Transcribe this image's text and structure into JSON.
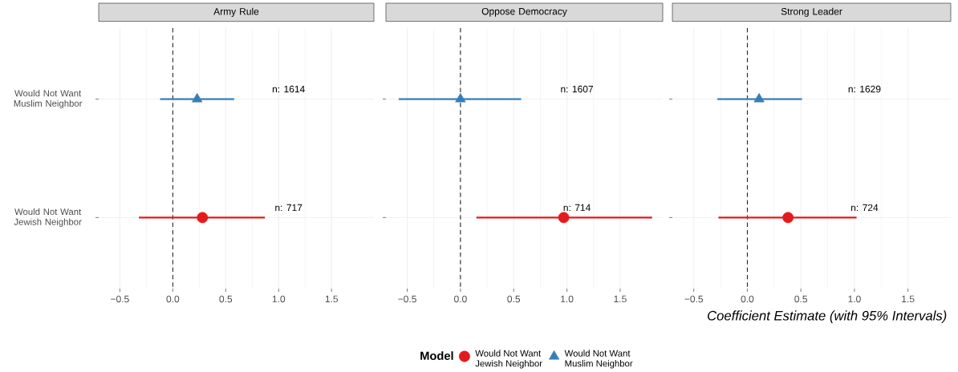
{
  "chart_data": [
    {
      "type": "scatter",
      "title": "Army Rule",
      "orientation": "horizontal",
      "categories": [
        "Would Not Want Muslim Neighbor",
        "Would Not Want Jewish Neighbor"
      ],
      "series": [
        {
          "color": "#e41a1c",
          "marker": "circle",
          "values": [
            null,
            0.28
          ],
          "errors": [
            null,
            [
              -0.32,
              0.87
            ]
          ]
        },
        {
          "color": "#377eb8",
          "marker": "triangle",
          "values": [
            0.23,
            null
          ],
          "errors": [
            [
              -0.12,
              0.58
            ],
            null
          ]
        }
      ],
      "xlim": [
        -0.7,
        1.9
      ],
      "xticks": [
        {
          "value": -0.5,
          "label": "−0.5"
        },
        {
          "value": 0,
          "label": "0.0"
        },
        {
          "value": 0.5,
          "label": "0.5"
        },
        {
          "value": 1,
          "label": "1.0"
        },
        {
          "value": 1.5,
          "label": "1.5"
        }
      ],
      "ref_lines": [
        {
          "axis": "x",
          "value": 0,
          "color": "#000000",
          "line_style": "dashed"
        }
      ],
      "annotations": [
        "n: 1614",
        "n: 717"
      ],
      "grid": true
    },
    {
      "type": "scatter",
      "title": "Oppose Democracy",
      "orientation": "horizontal",
      "categories": [
        null,
        null
      ],
      "series": [
        {
          "color": "#e41a1c",
          "marker": "circle",
          "values": [
            null,
            0.97
          ],
          "errors": [
            null,
            [
              0.15,
              1.8
            ]
          ]
        },
        {
          "color": "#377eb8",
          "marker": "triangle",
          "values": [
            0.0,
            null
          ],
          "errors": [
            [
              -0.58,
              0.57
            ],
            null
          ]
        }
      ],
      "xlim": [
        -0.7,
        1.9
      ],
      "xticks": [
        {
          "value": -0.5,
          "label": "−0.5"
        },
        {
          "value": 0,
          "label": "0.0"
        },
        {
          "value": 0.5,
          "label": "0.5"
        },
        {
          "value": 1,
          "label": "1.0"
        },
        {
          "value": 1.5,
          "label": "1.5"
        }
      ],
      "ref_lines": [
        {
          "axis": "x",
          "value": 0,
          "color": "#000000",
          "line_style": "dashed"
        }
      ],
      "annotations": [
        "n: 1607",
        "n: 714"
      ],
      "grid": true,
      "tick_labels": "x"
    },
    {
      "type": "scatter",
      "title": "Strong Leader",
      "orientation": "horizontal",
      "xlabel": "Coefficient Estimate (with 95% Intervals)",
      "categories": [
        null,
        null
      ],
      "series": [
        {
          "name": "Would Not Want Jewish Neighbor",
          "color": "#e41a1c",
          "marker": "circle",
          "values": [
            null,
            0.38
          ],
          "errors": [
            null,
            [
              -0.27,
              1.02
            ]
          ]
        },
        {
          "name": "Would Not Want Muslim Neighbor",
          "color": "#377eb8",
          "marker": "triangle",
          "values": [
            0.11,
            null
          ],
          "errors": [
            [
              -0.28,
              0.51
            ],
            null
          ]
        }
      ],
      "xlim": [
        -0.7,
        1.9
      ],
      "xticks": [
        {
          "value": -0.5,
          "label": "−0.5"
        },
        {
          "value": 0,
          "label": "0.0"
        },
        {
          "value": 0.5,
          "label": "0.5"
        },
        {
          "value": 1,
          "label": "1.0"
        },
        {
          "value": 1.5,
          "label": "1.5"
        }
      ],
      "ref_lines": [
        {
          "axis": "x",
          "value": 0,
          "color": "#000000",
          "line_style": "dashed"
        }
      ],
      "annotations": [
        "n: 1629",
        "n: 724"
      ],
      "grid": true,
      "tick_labels": "x",
      "legend": "bottom",
      "legend_title": "Model"
    }
  ]
}
